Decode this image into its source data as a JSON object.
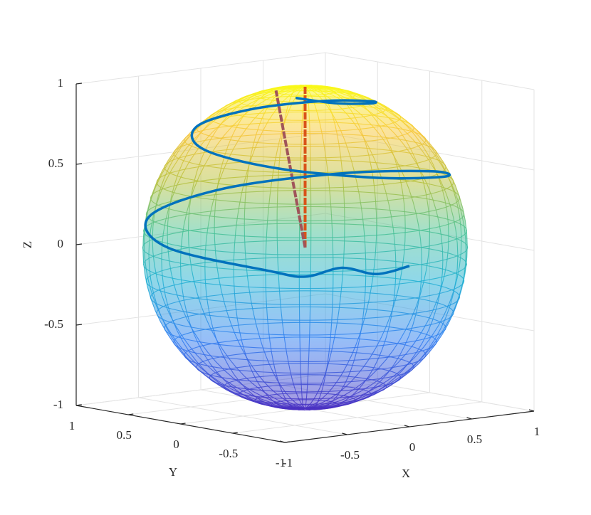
{
  "chart_data": {
    "type": "sphere3d",
    "xlabel": "X",
    "ylabel": "Y",
    "zlabel": "Z",
    "xlim": [
      -1,
      1
    ],
    "ylim": [
      -1,
      1
    ],
    "zlim": [
      -1,
      1
    ],
    "xticks": [
      -1,
      -0.5,
      0,
      0.5,
      1
    ],
    "yticks": [
      -1,
      -0.5,
      0,
      0.5,
      1
    ],
    "zticks": [
      -1,
      -0.5,
      0,
      0.5,
      1
    ],
    "grid": true,
    "sphere_radius": 1,
    "series": [
      {
        "color": "#0072bd",
        "x": [
          -0.21,
          -0.04,
          0.25,
          0.48,
          0.44,
          0.08,
          -0.42,
          -0.73,
          -0.63,
          -0.11,
          0.54,
          0.91,
          0.75,
          0.13,
          -0.6,
          -0.99,
          -0.79,
          -0.64,
          -0.45,
          -0.24,
          0
        ],
        "y": [
          -0.16,
          -0.33,
          -0.33,
          -0.06,
          0.34,
          0.62,
          0.54,
          0.1,
          -0.48,
          -0.83,
          -0.7,
          -0.12,
          0.58,
          0.96,
          0.78,
          0.13,
          -0.61,
          -0.77,
          -0.89,
          -0.97,
          -1
        ],
        "z": [
          0.97,
          0.94,
          0.91,
          0.87,
          0.83,
          0.78,
          0.73,
          0.67,
          0.61,
          0.54,
          0.47,
          0.4,
          0.32,
          0.24,
          0.16,
          0.08,
          0,
          -0.03,
          0.02,
          -0.03,
          0
        ]
      }
    ],
    "vectors": [
      {
        "color": "#d95319",
        "x": 0,
        "y": 0,
        "z": 1
      },
      {
        "color": "#a0545a",
        "x": -0.15,
        "y": 0.1,
        "z": 0.98
      }
    ]
  }
}
